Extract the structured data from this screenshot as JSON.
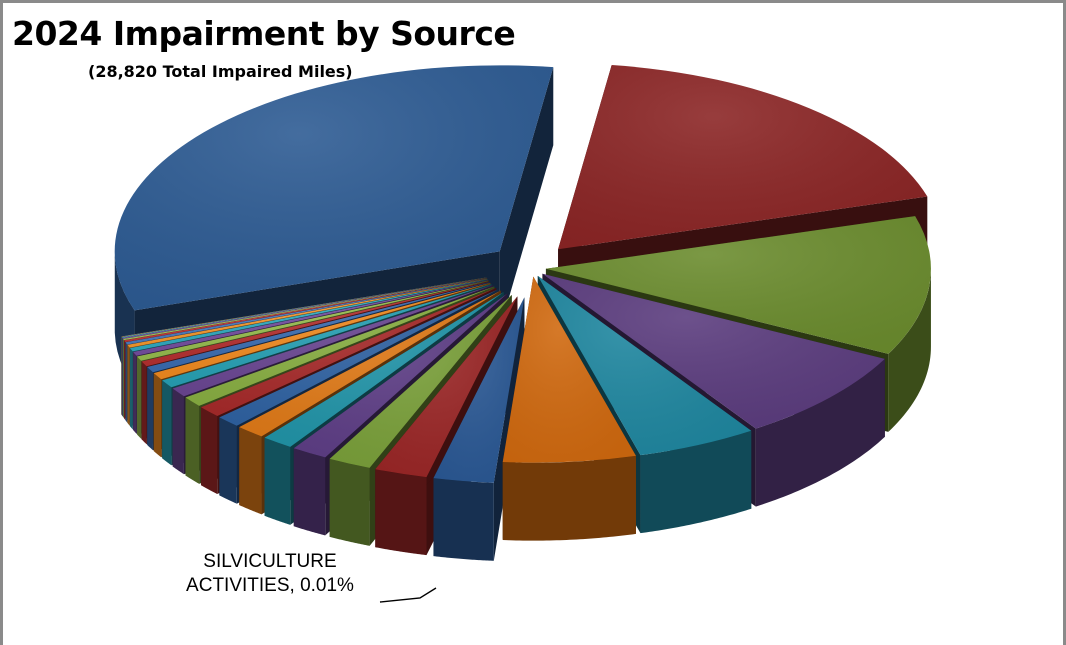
{
  "title": "2024 Impairment by Source",
  "subtitle": "(28,820 Total Impaired Miles)",
  "callout": {
    "line1": "SILVICULTURE",
    "line2": "ACTIVITIES, 0.01%"
  },
  "chart_data": {
    "type": "pie",
    "title": "2024 Impairment by Source",
    "subtitle": "(28,820 Total Impaired Miles)",
    "style": "3d-exploded",
    "slices": [
      {
        "value": 18.0,
        "color": "#8B2525"
      },
      {
        "value": 12.0,
        "color": "#6B8C2E"
      },
      {
        "value": 8.0,
        "color": "#5B3C7E"
      },
      {
        "value": 5.0,
        "color": "#1F87A0"
      },
      {
        "value": 5.5,
        "color": "#D0690F"
      },
      {
        "value": 2.5,
        "color": "#2A5894"
      },
      {
        "value": 2.2,
        "color": "#9A2626"
      },
      {
        "value": 1.8,
        "color": "#7AA03A"
      },
      {
        "value": 1.5,
        "color": "#5E3E86"
      },
      {
        "value": 1.3,
        "color": "#2194A8"
      },
      {
        "value": 1.2,
        "color": "#E07A18"
      },
      {
        "value": 1.0,
        "color": "#2F62A2"
      },
      {
        "value": 1.0,
        "color": "#A62A2A"
      },
      {
        "value": 0.9,
        "color": "#88AE42"
      },
      {
        "value": 0.8,
        "color": "#6A4692"
      },
      {
        "value": 0.7,
        "color": "#27A0B4"
      },
      {
        "value": 0.6,
        "color": "#F08A20"
      },
      {
        "value": 0.5,
        "color": "#3A6CB0"
      },
      {
        "value": 0.45,
        "color": "#B43030"
      },
      {
        "value": 0.4,
        "color": "#96BC4E"
      },
      {
        "value": 0.35,
        "color": "#744E9E"
      },
      {
        "value": 0.3,
        "color": "#30AAC0"
      },
      {
        "value": 0.25,
        "color": "#F5982E"
      },
      {
        "value": 0.2,
        "color": "#4A7CC0"
      },
      {
        "value": 0.15,
        "color": "#C03A3A"
      },
      {
        "value": 0.1,
        "color": "#A6C862"
      },
      {
        "value": 0.08,
        "color": "#7F5CAA"
      },
      {
        "value": 0.05,
        "color": "#3CB6CC"
      },
      {
        "value": 0.03,
        "color": "#F0A848"
      },
      {
        "value": 0.02,
        "color": "#8C9FC0"
      },
      {
        "value": 0.01,
        "color": "#A9A9B4",
        "label": "SILVICULTURE ACTIVITIES, 0.01%"
      },
      {
        "value": 32.0,
        "color": "#2D5B93"
      }
    ]
  }
}
